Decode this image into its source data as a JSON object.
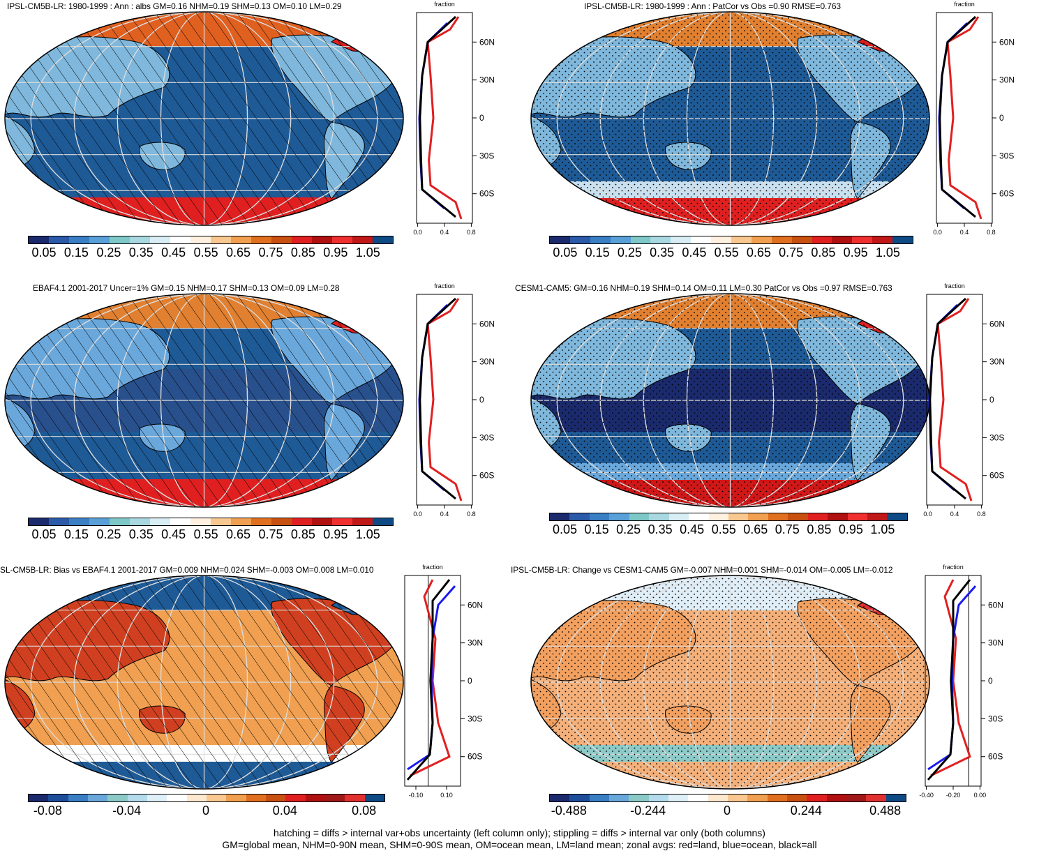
{
  "panels": [
    {
      "id": "p1",
      "title": "IPSL-CM5B-LR: 1980-1999 : Ann : albs GM=0.16 NHM=0.19 SHM=0.13 OM=0.10 LM=0.29",
      "overlay": "hatch",
      "colorbar_labels": [
        "0.05",
        "0.15",
        "0.25",
        "0.35",
        "0.45",
        "0.55",
        "0.65",
        "0.75",
        "0.85",
        "0.95",
        "1.05"
      ],
      "profile": {
        "xlabel": "fraction",
        "xticks": [
          "0.0",
          "0.4",
          "0.8"
        ],
        "yticks": [
          "60N",
          "30N",
          "0",
          "30S",
          "60S"
        ]
      }
    },
    {
      "id": "p2",
      "title": "IPSL-CM5B-LR: 1980-1999 : Ann : PatCor vs Obs =0.90 RMSE=0.763",
      "overlay": "stipple",
      "colorbar_labels": [
        "0.05",
        "0.15",
        "0.25",
        "0.35",
        "0.45",
        "0.55",
        "0.65",
        "0.75",
        "0.85",
        "0.95",
        "1.05"
      ],
      "profile": {
        "xlabel": "fraction",
        "xticks": [
          "0.0",
          "0.4",
          "0.8"
        ],
        "yticks": [
          "60N",
          "30N",
          "0",
          "30S",
          "60S"
        ]
      }
    },
    {
      "id": "p3",
      "title": "EBAF4.1 2001-2017 Uncer=1% GM=0.15 NHM=0.17 SHM=0.13 OM=0.09 LM=0.28",
      "overlay": "hatch",
      "colorbar_labels": [
        "0.05",
        "0.15",
        "0.25",
        "0.35",
        "0.45",
        "0.55",
        "0.65",
        "0.75",
        "0.85",
        "0.95",
        "1.05"
      ],
      "profile": {
        "xlabel": "fraction",
        "xticks": [
          "0.0",
          "0.4",
          "0.8"
        ],
        "yticks": [
          "60N",
          "30N",
          "0",
          "30S",
          "60S"
        ]
      }
    },
    {
      "id": "p4",
      "title": "CESM1-CAM5: GM=0.16 NHM=0.19 SHM=0.14 OM=0.11 LM=0.30 PatCor vs Obs =0.97 RMSE=0.763",
      "overlay": "stipple",
      "colorbar_labels": [
        "0.05",
        "0.15",
        "0.25",
        "0.35",
        "0.45",
        "0.55",
        "0.65",
        "0.75",
        "0.85",
        "0.95",
        "1.05"
      ],
      "profile": {
        "xlabel": "fraction",
        "xticks": [
          "0.0",
          "0.4",
          "0.8"
        ],
        "yticks": [
          "60N",
          "30N",
          "0",
          "30S",
          "60S"
        ]
      }
    },
    {
      "id": "p5",
      "title": "SL-CM5B-LR: Bias vs EBAF4.1 2001-2017 GM=0.009 NHM=0.024 SHM=-0.003 OM=0.008 LM=0.010",
      "overlay": "hatch",
      "colorbar_labels": [
        "-0.08",
        "-0.04",
        "0",
        "0.04",
        "0.08"
      ],
      "profile": {
        "xlabel": "fraction",
        "xticks": [
          "-0.10",
          "0.10"
        ],
        "yticks": [
          "60N",
          "30N",
          "0",
          "30S",
          "60S"
        ]
      }
    },
    {
      "id": "p6",
      "title": "IPSL-CM5B-LR: Change vs CESM1-CAM5 GM=-0.007 NHM=0.001 SHM=-0.014 OM=-0.005 LM=-0.012",
      "overlay": "stipple",
      "colorbar_labels": [
        "-0.488",
        "-0.244",
        "0",
        "0.244",
        "0.488"
      ],
      "profile": {
        "xlabel": "fraction",
        "xticks": [
          "-0.40",
          "-0.20",
          "0.00"
        ],
        "yticks": [
          "60N",
          "30N",
          "0",
          "30S",
          "60S"
        ]
      }
    }
  ],
  "palette_abs": [
    "#1a2a6c",
    "#2a5aa8",
    "#3a7ec4",
    "#5aa0d8",
    "#7ec8c8",
    "#a8d8e0",
    "#d8eef4",
    "#ffffff",
    "#fff0e0",
    "#f8c890",
    "#f0a050",
    "#e07020",
    "#c85010",
    "#e02020",
    "#b01010",
    "#f03030",
    "#c01818",
    "#0e4a84"
  ],
  "palette_diff": [
    "#1a2a6c",
    "#1e4e9a",
    "#3a7ec4",
    "#6aa8dc",
    "#8ccac8",
    "#b4dcec",
    "#e0f0f8",
    "#ffffff",
    "#fde8d0",
    "#f8c890",
    "#f0a050",
    "#e07020",
    "#c85010",
    "#e02020",
    "#b01010",
    "#a01818",
    "#e03030",
    "#0e4a84"
  ],
  "legend": {
    "line1": "hatching = diffs > internal var+obs uncertainty (left column only); stippling = diffs > internal var only (both columns)",
    "line2": "GM=global mean, NHM=0-90N mean, SHM=0-90S mean, OM=ocean mean, LM=land mean; zonal avgs: red=land, blue=ocean, black=all"
  },
  "series_colors": {
    "land": "#e02020",
    "ocean": "#1a1aee",
    "all": "#000000"
  }
}
